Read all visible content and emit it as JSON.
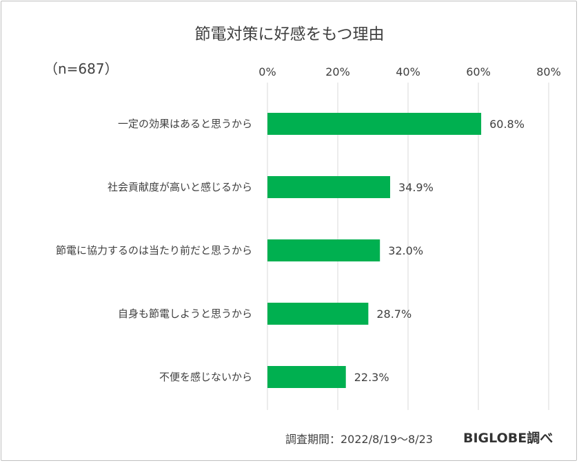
{
  "chart_data": {
    "type": "bar",
    "orientation": "horizontal",
    "title": "節電対策に好感をもつ理由",
    "sample_label": "（n=687）",
    "categories": [
      "一定の効果はあると思うから",
      "社会貢献度が高いと感じるから",
      "節電に協力するのは当たり前だと思うから",
      "自身も節電しようと思うから",
      "不便を感じないから"
    ],
    "values": [
      60.8,
      34.9,
      32.0,
      28.7,
      22.3
    ],
    "value_labels": [
      "60.8%",
      "34.9%",
      "32.0%",
      "28.7%",
      "22.3%"
    ],
    "xlim": [
      0,
      80
    ],
    "xticks": [
      0,
      20,
      40,
      60,
      80
    ],
    "xtick_labels": [
      "0%",
      "20%",
      "40%",
      "60%",
      "80%"
    ],
    "x_axis_position": "top",
    "grid": true,
    "bar_color": "#00b050",
    "grid_color": "#d9d9d9",
    "legend": "none"
  },
  "footer": {
    "survey_period": "調査期間：2022/8/19～8/23",
    "source": "BIGLOBE調べ"
  }
}
